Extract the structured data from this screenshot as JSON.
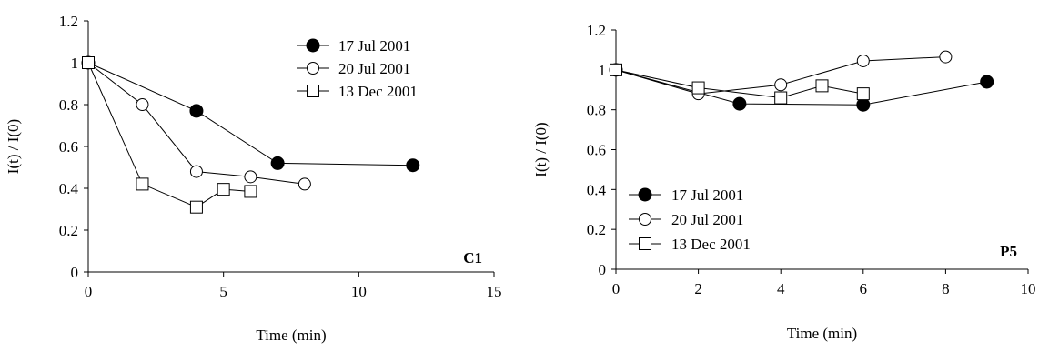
{
  "chart_data": [
    {
      "type": "line",
      "panel_label": "C1",
      "xlabel": "Time (min)",
      "ylabel": "I(t) / I(0)",
      "xlim": [
        0,
        15
      ],
      "ylim": [
        0,
        1.2
      ],
      "x_ticks": [
        "0",
        "5",
        "10",
        "15"
      ],
      "y_ticks": [
        "0",
        "0.2",
        "0.4",
        "0.6",
        "0.8",
        "1",
        "1.2"
      ],
      "legend_position": "top-right",
      "series": [
        {
          "name": "17 Jul 2001",
          "marker": "filled-circle",
          "points": [
            [
              0,
              1.0
            ],
            [
              4,
              0.77
            ],
            [
              7,
              0.52
            ],
            [
              12,
              0.51
            ]
          ]
        },
        {
          "name": "20 Jul 2001",
          "marker": "open-circle",
          "points": [
            [
              0,
              1.0
            ],
            [
              2,
              0.8
            ],
            [
              4,
              0.48
            ],
            [
              6,
              0.455
            ],
            [
              8,
              0.42
            ]
          ]
        },
        {
          "name": "13 Dec 2001",
          "marker": "open-square",
          "points": [
            [
              0,
              1.0
            ],
            [
              2,
              0.42
            ],
            [
              4,
              0.31
            ],
            [
              5,
              0.395
            ],
            [
              6,
              0.385
            ]
          ]
        }
      ]
    },
    {
      "type": "line",
      "panel_label": "P5",
      "xlabel": "Time (min)",
      "ylabel": "I(t) / I(0)",
      "xlim": [
        0,
        10
      ],
      "ylim": [
        0,
        1.2
      ],
      "x_ticks": [
        "0",
        "2",
        "4",
        "6",
        "8",
        "10"
      ],
      "y_ticks": [
        "0",
        "0.2",
        "0.4",
        "0.6",
        "0.8",
        "1",
        "1.2"
      ],
      "legend_position": "bottom-left",
      "series": [
        {
          "name": "17 Jul 2001",
          "marker": "filled-circle",
          "points": [
            [
              0,
              1.0
            ],
            [
              3,
              0.83
            ],
            [
              6,
              0.825
            ],
            [
              9,
              0.94
            ]
          ]
        },
        {
          "name": "20 Jul 2001",
          "marker": "open-circle",
          "points": [
            [
              0,
              1.0
            ],
            [
              2,
              0.88
            ],
            [
              4,
              0.925
            ],
            [
              6,
              1.045
            ],
            [
              8,
              1.065
            ]
          ]
        },
        {
          "name": "13 Dec 2001",
          "marker": "open-square",
          "points": [
            [
              0,
              1.0
            ],
            [
              2,
              0.91
            ],
            [
              4,
              0.86
            ],
            [
              5,
              0.92
            ],
            [
              6,
              0.88
            ]
          ]
        }
      ]
    }
  ]
}
